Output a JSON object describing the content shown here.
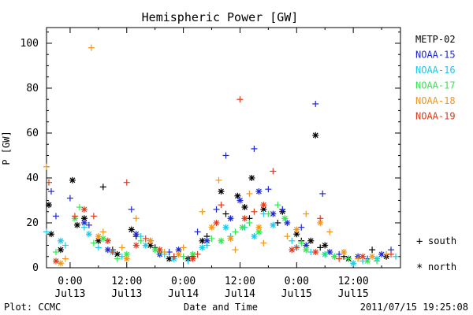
{
  "chart_data": {
    "type": "scatter",
    "title": "Hemispheric Power [GW]",
    "xlabel": "Date and Time",
    "ylabel": "P [GW]",
    "ylim": [
      0,
      107
    ],
    "xlim": [
      "2011-07-12 19:00",
      "2011-07-15 22:00"
    ],
    "yticks": [
      0,
      20,
      40,
      60,
      80,
      100
    ],
    "xticks": [
      {
        "time": "2011-07-13 00:00",
        "label_top": "0:00",
        "label_bottom": "Jul13"
      },
      {
        "time": "2011-07-13 12:00",
        "label_top": "12:00",
        "label_bottom": "Jul13"
      },
      {
        "time": "2011-07-14 00:00",
        "label_top": "0:00",
        "label_bottom": "Jul14"
      },
      {
        "time": "2011-07-14 12:00",
        "label_top": "12:00",
        "label_bottom": "Jul14"
      },
      {
        "time": "2011-07-15 00:00",
        "label_top": "0:00",
        "label_bottom": "Jul15"
      },
      {
        "time": "2011-07-15 12:00",
        "label_top": "12:00",
        "label_bottom": "Jul15"
      }
    ],
    "grid": false,
    "legend_position": "right",
    "series": [
      {
        "name": "METP-02",
        "color": "#000000",
        "south": [
          [
            "2011-07-13 07:00",
            36
          ],
          [
            "2011-07-13 09:00",
            8
          ],
          [
            "2011-07-13 14:00",
            14
          ],
          [
            "2011-07-13 18:00",
            9
          ],
          [
            "2011-07-13 22:00",
            5
          ],
          [
            "2011-07-14 02:00",
            5
          ],
          [
            "2011-07-14 05:00",
            14
          ],
          [
            "2011-07-14 09:00",
            24
          ],
          [
            "2011-07-14 14:00",
            22
          ],
          [
            "2011-07-14 20:00",
            20
          ],
          [
            "2011-07-15 01:00",
            12
          ],
          [
            "2011-07-15 05:00",
            9
          ],
          [
            "2011-07-15 10:00",
            5
          ],
          [
            "2011-07-15 16:00",
            8
          ]
        ],
        "north": [
          [
            "2011-07-12 19:30",
            28
          ],
          [
            "2011-07-12 20:00",
            15
          ],
          [
            "2011-07-12 22:00",
            8
          ],
          [
            "2011-07-13 00:30",
            39
          ],
          [
            "2011-07-13 01:30",
            19
          ],
          [
            "2011-07-13 03:00",
            22
          ],
          [
            "2011-07-13 06:00",
            12
          ],
          [
            "2011-07-13 10:00",
            6
          ],
          [
            "2011-07-13 13:00",
            17
          ],
          [
            "2011-07-13 17:00",
            10
          ],
          [
            "2011-07-13 21:00",
            4
          ],
          [
            "2011-07-14 01:00",
            4
          ],
          [
            "2011-07-14 04:00",
            12
          ],
          [
            "2011-07-14 08:00",
            34
          ],
          [
            "2011-07-14 11:30",
            32
          ],
          [
            "2011-07-14 13:00",
            27
          ],
          [
            "2011-07-14 14:30",
            40
          ],
          [
            "2011-07-14 17:00",
            26
          ],
          [
            "2011-07-14 21:00",
            25
          ],
          [
            "2011-07-15 00:00",
            15
          ],
          [
            "2011-07-15 03:00",
            12
          ],
          [
            "2011-07-15 04:00",
            59
          ],
          [
            "2011-07-15 06:00",
            10
          ],
          [
            "2011-07-15 11:00",
            4
          ],
          [
            "2011-07-15 19:00",
            5
          ]
        ]
      },
      {
        "name": "NOAA-15",
        "color": "#1e28d2",
        "south": [
          [
            "2011-07-12 20:00",
            34
          ],
          [
            "2011-07-12 21:00",
            23
          ],
          [
            "2011-07-13 00:00",
            31
          ],
          [
            "2011-07-13 04:00",
            19
          ],
          [
            "2011-07-13 13:00",
            26
          ],
          [
            "2011-07-13 17:00",
            12
          ],
          [
            "2011-07-13 21:00",
            7
          ],
          [
            "2011-07-14 03:00",
            16
          ],
          [
            "2011-07-14 07:00",
            26
          ],
          [
            "2011-07-14 09:00",
            50
          ],
          [
            "2011-07-14 15:00",
            53
          ],
          [
            "2011-07-14 18:00",
            35
          ],
          [
            "2011-07-14 21:00",
            26
          ],
          [
            "2011-07-15 01:00",
            18
          ],
          [
            "2011-07-15 04:00",
            73
          ],
          [
            "2011-07-15 05:30",
            33
          ],
          [
            "2011-07-15 09:00",
            6
          ],
          [
            "2011-07-15 15:00",
            4
          ],
          [
            "2011-07-15 20:00",
            8
          ]
        ],
        "north": [
          [
            "2011-07-13 03:00",
            20
          ],
          [
            "2011-07-13 08:00",
            8
          ],
          [
            "2011-07-13 14:00",
            15
          ],
          [
            "2011-07-13 19:00",
            6
          ],
          [
            "2011-07-13 23:00",
            8
          ],
          [
            "2011-07-14 05:00",
            12
          ],
          [
            "2011-07-14 10:00",
            22
          ],
          [
            "2011-07-14 12:00",
            30
          ],
          [
            "2011-07-14 16:00",
            34
          ],
          [
            "2011-07-14 19:00",
            24
          ],
          [
            "2011-07-14 22:00",
            20
          ],
          [
            "2011-07-15 02:00",
            10
          ],
          [
            "2011-07-15 07:00",
            7
          ],
          [
            "2011-07-15 13:00",
            5
          ],
          [
            "2011-07-15 18:00",
            6
          ]
        ]
      },
      {
        "name": "NOAA-16",
        "color": "#1ec8e6",
        "south": [
          [
            "2011-07-12 19:00",
            16
          ],
          [
            "2011-07-12 23:00",
            10
          ],
          [
            "2011-07-13 03:00",
            18
          ],
          [
            "2011-07-13 06:00",
            9
          ],
          [
            "2011-07-13 11:00",
            5
          ],
          [
            "2011-07-13 15:00",
            14
          ],
          [
            "2011-07-13 20:00",
            6
          ],
          [
            "2011-07-14 01:00",
            3
          ],
          [
            "2011-07-14 05:00",
            10
          ],
          [
            "2011-07-14 10:00",
            14
          ],
          [
            "2011-07-14 13:00",
            18
          ],
          [
            "2011-07-14 17:00",
            24
          ],
          [
            "2011-07-14 23:00",
            12
          ],
          [
            "2011-07-15 03:00",
            7
          ],
          [
            "2011-07-15 08:00",
            5
          ],
          [
            "2011-07-15 14:00",
            3
          ],
          [
            "2011-07-15 21:00",
            5
          ]
        ],
        "north": [
          [
            "2011-07-12 22:00",
            12
          ],
          [
            "2011-07-13 04:00",
            15
          ],
          [
            "2011-07-13 09:00",
            7
          ],
          [
            "2011-07-13 16:00",
            10
          ],
          [
            "2011-07-13 22:00",
            4
          ],
          [
            "2011-07-14 04:00",
            9
          ],
          [
            "2011-07-14 09:00",
            18
          ],
          [
            "2011-07-14 15:00",
            14
          ],
          [
            "2011-07-14 19:00",
            19
          ],
          [
            "2011-07-15 00:00",
            9
          ],
          [
            "2011-07-15 06:00",
            6
          ],
          [
            "2011-07-15 12:00",
            2
          ],
          [
            "2011-07-15 17:00",
            4
          ]
        ]
      },
      {
        "name": "NOAA-17",
        "color": "#32e650",
        "south": [
          [
            "2011-07-12 21:00",
            7
          ],
          [
            "2011-07-13 02:00",
            27
          ],
          [
            "2011-07-13 05:00",
            11
          ],
          [
            "2011-07-13 10:00",
            4
          ],
          [
            "2011-07-13 15:00",
            12
          ],
          [
            "2011-07-13 19:00",
            7
          ],
          [
            "2011-07-14 00:00",
            5
          ],
          [
            "2011-07-14 06:00",
            13
          ],
          [
            "2011-07-14 11:00",
            16
          ],
          [
            "2011-07-14 14:00",
            20
          ],
          [
            "2011-07-14 18:00",
            24
          ],
          [
            "2011-07-14 20:00",
            28
          ],
          [
            "2011-07-15 01:00",
            11
          ],
          [
            "2011-07-15 06:00",
            6
          ],
          [
            "2011-07-15 11:00",
            4
          ],
          [
            "2011-07-15 17:00",
            3
          ]
        ],
        "north": [
          [
            "2011-07-13 01:00",
            22
          ],
          [
            "2011-07-13 07:00",
            13
          ],
          [
            "2011-07-13 12:00",
            6
          ],
          [
            "2011-07-13 18:00",
            8
          ],
          [
            "2011-07-14 02:00",
            6
          ],
          [
            "2011-07-14 08:00",
            12
          ],
          [
            "2011-07-14 12:30",
            18
          ],
          [
            "2011-07-14 16:00",
            16
          ],
          [
            "2011-07-14 21:30",
            22
          ],
          [
            "2011-07-15 02:00",
            8
          ],
          [
            "2011-07-15 08:00",
            5
          ],
          [
            "2011-07-15 15:00",
            3
          ]
        ]
      },
      {
        "name": "NOAA-18",
        "color": "#f0961e",
        "south": [
          [
            "2011-07-12 19:00",
            45
          ],
          [
            "2011-07-12 23:00",
            4
          ],
          [
            "2011-07-13 04:30",
            98
          ],
          [
            "2011-07-13 07:00",
            16
          ],
          [
            "2011-07-13 11:00",
            9
          ],
          [
            "2011-07-13 14:00",
            22
          ],
          [
            "2011-07-13 20:00",
            7
          ],
          [
            "2011-07-14 00:00",
            9
          ],
          [
            "2011-07-14 04:00",
            25
          ],
          [
            "2011-07-14 07:30",
            39
          ],
          [
            "2011-07-14 11:00",
            8
          ],
          [
            "2011-07-14 14:00",
            33
          ],
          [
            "2011-07-14 17:00",
            11
          ],
          [
            "2011-07-14 22:00",
            14
          ],
          [
            "2011-07-15 02:00",
            24
          ],
          [
            "2011-07-15 07:00",
            16
          ],
          [
            "2011-07-15 13:00",
            4
          ],
          [
            "2011-07-15 19:00",
            6
          ]
        ],
        "north": [
          [
            "2011-07-12 22:00",
            2
          ],
          [
            "2011-07-13 06:00",
            14
          ],
          [
            "2011-07-13 12:00",
            4
          ],
          [
            "2011-07-13 17:00",
            12
          ],
          [
            "2011-07-13 23:00",
            6
          ],
          [
            "2011-07-14 06:00",
            18
          ],
          [
            "2011-07-14 10:00",
            13
          ],
          [
            "2011-07-14 16:00",
            18
          ],
          [
            "2011-07-15 00:00",
            17
          ],
          [
            "2011-07-15 05:00",
            20
          ],
          [
            "2011-07-15 10:00",
            7
          ],
          [
            "2011-07-15 16:00",
            5
          ]
        ]
      },
      {
        "name": "NOAA-19",
        "color": "#dc3c1e",
        "south": [
          [
            "2011-07-12 19:30",
            38
          ],
          [
            "2011-07-13 01:00",
            23
          ],
          [
            "2011-07-13 05:00",
            23
          ],
          [
            "2011-07-13 09:00",
            7
          ],
          [
            "2011-07-13 12:00",
            38
          ],
          [
            "2011-07-13 16:00",
            13
          ],
          [
            "2011-07-13 22:00",
            5
          ],
          [
            "2011-07-14 03:00",
            6
          ],
          [
            "2011-07-14 08:00",
            28
          ],
          [
            "2011-07-14 12:00",
            75
          ],
          [
            "2011-07-14 15:00",
            25
          ],
          [
            "2011-07-14 19:00",
            43
          ],
          [
            "2011-07-15 00:00",
            9
          ],
          [
            "2011-07-15 05:00",
            22
          ],
          [
            "2011-07-15 09:00",
            4
          ],
          [
            "2011-07-15 20:00",
            6
          ]
        ],
        "north": [
          [
            "2011-07-12 21:00",
            3
          ],
          [
            "2011-07-13 03:00",
            26
          ],
          [
            "2011-07-13 08:00",
            12
          ],
          [
            "2011-07-13 14:00",
            10
          ],
          [
            "2011-07-13 19:00",
            8
          ],
          [
            "2011-07-14 02:00",
            4
          ],
          [
            "2011-07-14 07:00",
            20
          ],
          [
            "2011-07-14 13:00",
            22
          ],
          [
            "2011-07-14 17:00",
            28
          ],
          [
            "2011-07-14 23:00",
            8
          ],
          [
            "2011-07-15 04:00",
            7
          ],
          [
            "2011-07-15 14:00",
            5
          ]
        ]
      }
    ]
  },
  "legend_markers": {
    "south_label": "south",
    "south_symbol": "+",
    "north_label": "north",
    "north_symbol": "*"
  },
  "footer": {
    "left": "Plot: CCMC",
    "right": "2011/07/15 19:25:08"
  }
}
